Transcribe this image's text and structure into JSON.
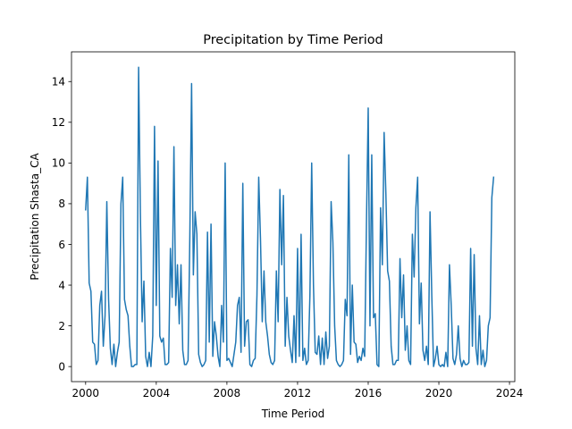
{
  "chart_data": {
    "type": "line",
    "title": "Precipitation by Time Period",
    "xlabel": "Time Period",
    "ylabel": "Precipitation Shasta_CA",
    "xlim": [
      1999.2,
      2024.3
    ],
    "ylim": [
      -0.74,
      15.46
    ],
    "xticks": [
      2000,
      2004,
      2008,
      2012,
      2016,
      2020,
      2024
    ],
    "yticks": [
      0,
      2,
      4,
      6,
      8,
      10,
      12,
      14
    ],
    "grid": false,
    "color": "#1f77b4",
    "series": [
      {
        "name": "",
        "points": [
          [
            2000.0,
            7.7
          ],
          [
            2000.1,
            9.3
          ],
          [
            2000.2,
            4.1
          ],
          [
            2000.3,
            3.7
          ],
          [
            2000.4,
            1.2
          ],
          [
            2000.5,
            1.1
          ],
          [
            2000.6,
            0.1
          ],
          [
            2000.7,
            0.3
          ],
          [
            2000.8,
            3.0
          ],
          [
            2000.9,
            3.7
          ],
          [
            2001.0,
            1.0
          ],
          [
            2001.1,
            2.5
          ],
          [
            2001.2,
            8.1
          ],
          [
            2001.3,
            3.3
          ],
          [
            2001.4,
            0.9
          ],
          [
            2001.5,
            0.1
          ],
          [
            2001.6,
            1.1
          ],
          [
            2001.7,
            0.0
          ],
          [
            2001.8,
            0.7
          ],
          [
            2001.9,
            1.2
          ],
          [
            2002.0,
            8.0
          ],
          [
            2002.1,
            9.3
          ],
          [
            2002.2,
            3.3
          ],
          [
            2002.3,
            2.8
          ],
          [
            2002.4,
            2.5
          ],
          [
            2002.5,
            1.0
          ],
          [
            2002.6,
            0.0
          ],
          [
            2002.7,
            0.0
          ],
          [
            2002.8,
            0.1
          ],
          [
            2002.9,
            0.1
          ],
          [
            2003.0,
            14.7
          ],
          [
            2003.1,
            7.5
          ],
          [
            2003.2,
            2.2
          ],
          [
            2003.3,
            4.2
          ],
          [
            2003.4,
            0.5
          ],
          [
            2003.5,
            0.0
          ],
          [
            2003.6,
            0.7
          ],
          [
            2003.7,
            0.0
          ],
          [
            2003.8,
            1.5
          ],
          [
            2003.9,
            11.8
          ],
          [
            2004.0,
            3.0
          ],
          [
            2004.1,
            10.1
          ],
          [
            2004.2,
            1.5
          ],
          [
            2004.3,
            1.2
          ],
          [
            2004.4,
            1.4
          ],
          [
            2004.5,
            0.1
          ],
          [
            2004.6,
            0.1
          ],
          [
            2004.7,
            0.2
          ],
          [
            2004.8,
            5.8
          ],
          [
            2004.9,
            3.4
          ],
          [
            2005.0,
            10.8
          ],
          [
            2005.1,
            3.0
          ],
          [
            2005.2,
            5.0
          ],
          [
            2005.3,
            2.1
          ],
          [
            2005.4,
            5.0
          ],
          [
            2005.5,
            0.8
          ],
          [
            2005.6,
            0.1
          ],
          [
            2005.7,
            0.1
          ],
          [
            2005.8,
            0.3
          ],
          [
            2005.9,
            6.4
          ],
          [
            2006.0,
            13.9
          ],
          [
            2006.1,
            4.5
          ],
          [
            2006.2,
            7.6
          ],
          [
            2006.3,
            6.5
          ],
          [
            2006.4,
            0.6
          ],
          [
            2006.5,
            0.2
          ],
          [
            2006.6,
            0.0
          ],
          [
            2006.7,
            0.1
          ],
          [
            2006.8,
            0.3
          ],
          [
            2006.9,
            6.6
          ],
          [
            2007.0,
            1.2
          ],
          [
            2007.1,
            7.0
          ],
          [
            2007.2,
            0.5
          ],
          [
            2007.3,
            2.2
          ],
          [
            2007.4,
            1.5
          ],
          [
            2007.5,
            0.5
          ],
          [
            2007.6,
            0.0
          ],
          [
            2007.7,
            3.0
          ],
          [
            2007.8,
            1.2
          ],
          [
            2007.9,
            10.0
          ],
          [
            2008.0,
            0.3
          ],
          [
            2008.1,
            0.4
          ],
          [
            2008.2,
            0.2
          ],
          [
            2008.3,
            0.0
          ],
          [
            2008.4,
            0.6
          ],
          [
            2008.5,
            1.2
          ],
          [
            2008.6,
            3.0
          ],
          [
            2008.7,
            3.4
          ],
          [
            2008.8,
            0.7
          ],
          [
            2008.9,
            9.0
          ],
          [
            2009.0,
            1.0
          ],
          [
            2009.1,
            2.2
          ],
          [
            2009.2,
            2.3
          ],
          [
            2009.3,
            0.1
          ],
          [
            2009.4,
            0.0
          ],
          [
            2009.5,
            0.3
          ],
          [
            2009.6,
            0.4
          ],
          [
            2009.7,
            3.5
          ],
          [
            2009.8,
            9.3
          ],
          [
            2009.9,
            6.3
          ],
          [
            2010.0,
            2.2
          ],
          [
            2010.1,
            4.7
          ],
          [
            2010.2,
            2.2
          ],
          [
            2010.3,
            1.5
          ],
          [
            2010.4,
            0.6
          ],
          [
            2010.5,
            0.2
          ],
          [
            2010.6,
            0.1
          ],
          [
            2010.7,
            0.3
          ],
          [
            2010.8,
            4.7
          ],
          [
            2010.9,
            2.2
          ],
          [
            2011.0,
            8.7
          ],
          [
            2011.1,
            5.0
          ],
          [
            2011.2,
            8.4
          ],
          [
            2011.3,
            1.0
          ],
          [
            2011.4,
            3.4
          ],
          [
            2011.5,
            1.5
          ],
          [
            2011.6,
            0.8
          ],
          [
            2011.7,
            0.2
          ],
          [
            2011.8,
            2.5
          ],
          [
            2011.9,
            0.2
          ],
          [
            2012.0,
            5.8
          ],
          [
            2012.1,
            0.5
          ],
          [
            2012.2,
            6.5
          ],
          [
            2012.3,
            0.3
          ],
          [
            2012.4,
            0.9
          ],
          [
            2012.5,
            0.1
          ],
          [
            2012.6,
            0.3
          ],
          [
            2012.7,
            3.5
          ],
          [
            2012.8,
            10.0
          ],
          [
            2012.9,
            4.0
          ],
          [
            2013.0,
            0.7
          ],
          [
            2013.1,
            0.6
          ],
          [
            2013.2,
            1.5
          ],
          [
            2013.3,
            0.1
          ],
          [
            2013.4,
            1.4
          ],
          [
            2013.5,
            0.1
          ],
          [
            2013.6,
            1.7
          ],
          [
            2013.7,
            0.4
          ],
          [
            2013.8,
            1.0
          ],
          [
            2013.9,
            8.1
          ],
          [
            2014.0,
            6.1
          ],
          [
            2014.1,
            2.0
          ],
          [
            2014.2,
            0.3
          ],
          [
            2014.3,
            0.1
          ],
          [
            2014.4,
            0.0
          ],
          [
            2014.5,
            0.1
          ],
          [
            2014.6,
            0.3
          ],
          [
            2014.7,
            3.3
          ],
          [
            2014.8,
            2.5
          ],
          [
            2014.9,
            10.4
          ],
          [
            2015.0,
            0.6
          ],
          [
            2015.1,
            4.0
          ],
          [
            2015.2,
            1.2
          ],
          [
            2015.3,
            1.1
          ],
          [
            2015.4,
            0.2
          ],
          [
            2015.5,
            0.5
          ],
          [
            2015.6,
            0.3
          ],
          [
            2015.7,
            0.9
          ],
          [
            2015.8,
            0.5
          ],
          [
            2015.9,
            7.0
          ],
          [
            2016.0,
            12.7
          ],
          [
            2016.1,
            2.0
          ],
          [
            2016.2,
            10.4
          ],
          [
            2016.3,
            2.4
          ],
          [
            2016.4,
            2.6
          ],
          [
            2016.5,
            0.1
          ],
          [
            2016.6,
            0.0
          ],
          [
            2016.7,
            7.8
          ],
          [
            2016.8,
            5.0
          ],
          [
            2016.9,
            11.5
          ],
          [
            2017.0,
            8.5
          ],
          [
            2017.1,
            4.7
          ],
          [
            2017.2,
            4.2
          ],
          [
            2017.3,
            1.0
          ],
          [
            2017.4,
            0.1
          ],
          [
            2017.5,
            0.1
          ],
          [
            2017.6,
            0.3
          ],
          [
            2017.7,
            0.3
          ],
          [
            2017.8,
            5.3
          ],
          [
            2017.9,
            2.4
          ],
          [
            2018.0,
            4.5
          ],
          [
            2018.1,
            0.8
          ],
          [
            2018.2,
            2.0
          ],
          [
            2018.3,
            0.3
          ],
          [
            2018.4,
            0.1
          ],
          [
            2018.5,
            6.5
          ],
          [
            2018.6,
            4.4
          ],
          [
            2018.7,
            7.8
          ],
          [
            2018.8,
            9.3
          ],
          [
            2018.9,
            2.1
          ],
          [
            2019.0,
            4.1
          ],
          [
            2019.1,
            0.8
          ],
          [
            2019.2,
            0.3
          ],
          [
            2019.3,
            1.0
          ],
          [
            2019.4,
            0.1
          ],
          [
            2019.5,
            7.6
          ],
          [
            2019.6,
            3.5
          ],
          [
            2019.7,
            0.0
          ],
          [
            2019.8,
            0.4
          ],
          [
            2019.9,
            1.0
          ],
          [
            2020.0,
            0.1
          ],
          [
            2020.1,
            0.0
          ],
          [
            2020.2,
            0.1
          ],
          [
            2020.3,
            0.0
          ],
          [
            2020.4,
            0.7
          ],
          [
            2020.5,
            0.0
          ],
          [
            2020.6,
            5.0
          ],
          [
            2020.7,
            3.0
          ],
          [
            2020.8,
            0.4
          ],
          [
            2020.9,
            0.1
          ],
          [
            2021.0,
            0.6
          ],
          [
            2021.1,
            2.0
          ],
          [
            2021.2,
            0.4
          ],
          [
            2021.3,
            0.0
          ],
          [
            2021.4,
            0.3
          ],
          [
            2021.5,
            0.1
          ],
          [
            2021.6,
            0.1
          ],
          [
            2021.7,
            0.2
          ],
          [
            2021.8,
            5.8
          ],
          [
            2021.9,
            1.0
          ],
          [
            2022.0,
            5.5
          ],
          [
            2022.1,
            0.9
          ],
          [
            2022.2,
            0.1
          ],
          [
            2022.3,
            2.5
          ],
          [
            2022.4,
            0.1
          ],
          [
            2022.5,
            0.8
          ],
          [
            2022.6,
            0.0
          ],
          [
            2022.7,
            0.3
          ],
          [
            2022.8,
            2.0
          ],
          [
            2022.9,
            2.4
          ],
          [
            2023.0,
            8.3
          ],
          [
            2023.1,
            9.3
          ]
        ]
      }
    ]
  }
}
